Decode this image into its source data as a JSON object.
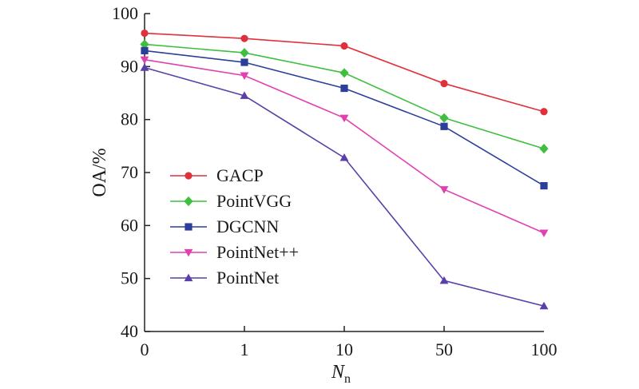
{
  "chart_data": {
    "type": "line",
    "categories": [
      "0",
      "1",
      "10",
      "50",
      "100"
    ],
    "xlabel": "N",
    "xlabel_sub": "n",
    "ylabel": "OA/%",
    "ylim": [
      40,
      100
    ],
    "yticks": [
      40,
      50,
      60,
      70,
      80,
      90,
      100
    ],
    "grid": false,
    "legend_position": "center-left",
    "series": [
      {
        "name": "GACP",
        "color": "#e0303a",
        "marker": "circle",
        "values": [
          96.3,
          95.3,
          93.9,
          86.8,
          81.5
        ]
      },
      {
        "name": "PointVGG",
        "color": "#3fbf3f",
        "marker": "diamond",
        "values": [
          94.2,
          92.6,
          88.8,
          80.3,
          74.5
        ]
      },
      {
        "name": "DGCNN",
        "color": "#2b3f9a",
        "marker": "square",
        "values": [
          93.0,
          90.8,
          85.9,
          78.7,
          67.5
        ]
      },
      {
        "name": "PointNet++",
        "color": "#e040b0",
        "marker": "triangle-down",
        "values": [
          91.3,
          88.3,
          80.3,
          66.8,
          58.6
        ]
      },
      {
        "name": "PointNet",
        "color": "#5a3fa8",
        "marker": "triangle-up",
        "values": [
          89.8,
          84.5,
          72.8,
          49.6,
          44.8
        ]
      }
    ]
  }
}
